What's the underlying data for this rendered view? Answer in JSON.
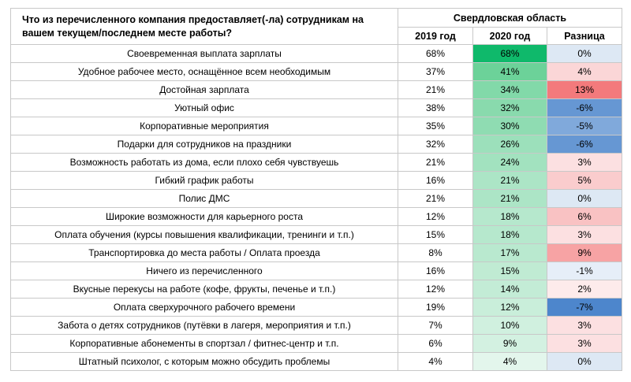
{
  "header": {
    "question": "Что из перечисленного компания предоставляет(-ла) сотрудникам на вашем текущем/последнем месте работы?",
    "region": "Свердловская область",
    "col_2019": "2019 год",
    "col_2020": "2020 год",
    "col_diff": "Разница"
  },
  "colors": {
    "green_strong": "#0fb96b",
    "green_scale_low": "#e3f6ec",
    "green_scale_high": "#63cf93",
    "red_strong": "#f37a7c",
    "blue_strong": "#4d86cc"
  },
  "rows": [
    {
      "label": "Своевременная выплата зарплаты",
      "y2019": "68%",
      "y2020": "68%",
      "diff": "0%"
    },
    {
      "label": "Удобное рабочее место, оснащённое всем необходимым",
      "y2019": "37%",
      "y2020": "41%",
      "diff": "4%"
    },
    {
      "label": "Достойная зарплата",
      "y2019": "21%",
      "y2020": "34%",
      "diff": "13%"
    },
    {
      "label": "Уютный офис",
      "y2019": "38%",
      "y2020": "32%",
      "diff": "-6%"
    },
    {
      "label": "Корпоративные мероприятия",
      "y2019": "35%",
      "y2020": "30%",
      "diff": "-5%"
    },
    {
      "label": "Подарки для сотрудников на праздники",
      "y2019": "32%",
      "y2020": "26%",
      "diff": "-6%"
    },
    {
      "label": "Возможность работать из дома, если плохо себя чувствуешь",
      "y2019": "21%",
      "y2020": "24%",
      "diff": "3%"
    },
    {
      "label": "Гибкий график работы",
      "y2019": "16%",
      "y2020": "21%",
      "diff": "5%"
    },
    {
      "label": "Полис ДМС",
      "y2019": "21%",
      "y2020": "21%",
      "diff": "0%"
    },
    {
      "label": "Широкие возможности для карьерного роста",
      "y2019": "12%",
      "y2020": "18%",
      "diff": "6%"
    },
    {
      "label": "Оплата обучения (курсы повышения квалификации, тренинги и т.п.)",
      "y2019": "15%",
      "y2020": "18%",
      "diff": "3%"
    },
    {
      "label": "Транспортировка до места работы / Оплата проезда",
      "y2019": "8%",
      "y2020": "17%",
      "diff": "9%"
    },
    {
      "label": "Ничего из перечисленного",
      "y2019": "16%",
      "y2020": "15%",
      "diff": "-1%"
    },
    {
      "label": "Вкусные перекусы на работе (кофе, фрукты, печенье и т.п.)",
      "y2019": "12%",
      "y2020": "14%",
      "diff": "2%"
    },
    {
      "label": "Оплата сверхурочного рабочего времени",
      "y2019": "19%",
      "y2020": "12%",
      "diff": "-7%"
    },
    {
      "label": "Забота о детях сотрудников (путёвки в лагеря, мероприятия и т.п.)",
      "y2019": "7%",
      "y2020": "10%",
      "diff": "3%"
    },
    {
      "label": "Корпоративные абонементы в спортзал / фитнес-центр и т.п.",
      "y2019": "6%",
      "y2020": "9%",
      "diff": "3%"
    },
    {
      "label": "Штатный психолог, с которым можно обсудить проблемы",
      "y2019": "4%",
      "y2020": "4%",
      "diff": "0%"
    }
  ]
}
